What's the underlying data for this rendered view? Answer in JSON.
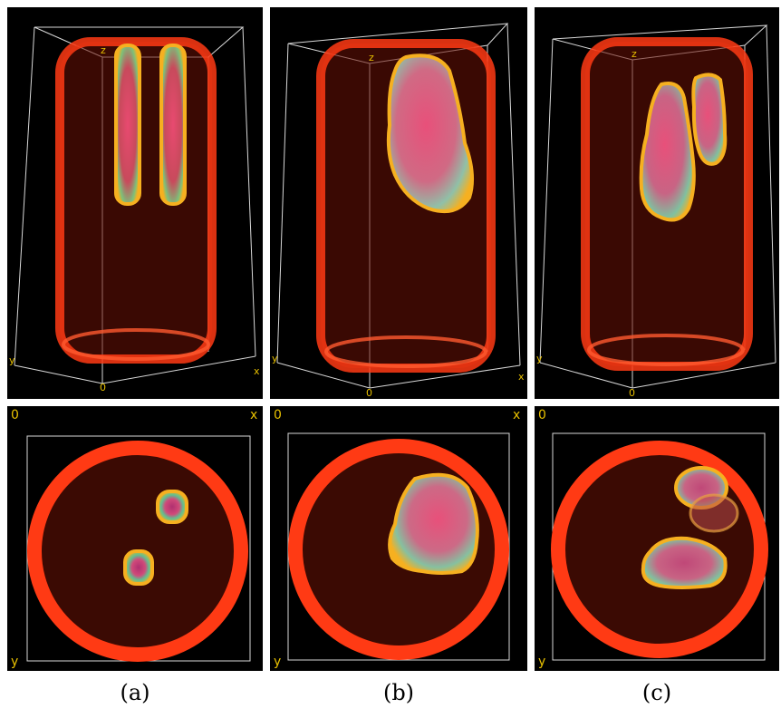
{
  "colors": {
    "background": "#000000",
    "vessel": "#ff3a14",
    "axis_label": "#e8c000",
    "box": "#d8d8d8"
  },
  "top_axis_labels": {
    "z": "z",
    "y": "y",
    "x": "x",
    "origin": "0"
  },
  "bottom_axis_labels": {
    "corner": "0",
    "x": "x",
    "y": "y"
  },
  "captions": [
    "(a)",
    "(b)",
    "(c)"
  ]
}
